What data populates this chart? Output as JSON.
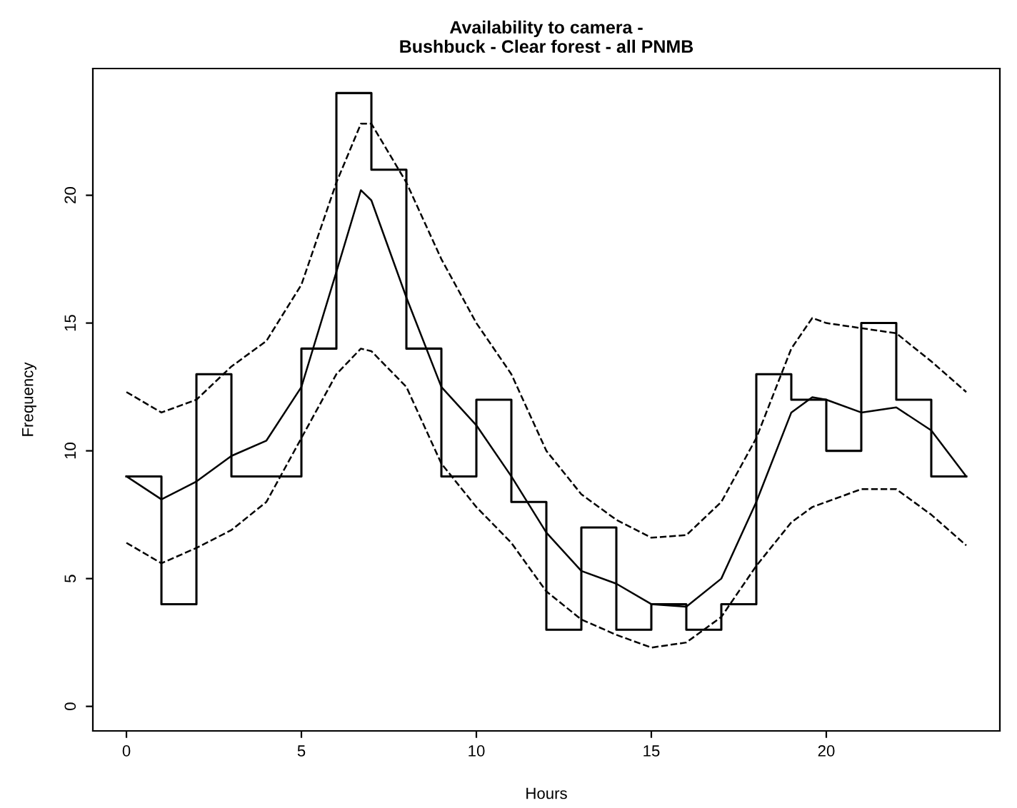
{
  "chart_data": {
    "type": "line",
    "title": "Availability to camera -\nBushbuck - Clear forest - all PNMB",
    "xlabel": "Hours",
    "ylabel": "Frequency",
    "series": [
      {
        "type": "step",
        "color": "#000000",
        "line_style": "solid",
        "x": [
          0,
          1,
          2,
          3,
          4,
          5,
          6,
          7,
          8,
          9,
          10,
          11,
          12,
          13,
          14,
          15,
          16,
          17,
          18,
          19,
          20,
          21,
          22,
          23,
          24
        ],
        "values": [
          9,
          4,
          13,
          9,
          9,
          14,
          24,
          21,
          14,
          9,
          12,
          8,
          3,
          7,
          3,
          4,
          3,
          4,
          13,
          12,
          10,
          15,
          12,
          9,
          9
        ]
      },
      {
        "color": "#000000",
        "line_style": "solid",
        "x": [
          0,
          1,
          2,
          3,
          4,
          5,
          6,
          6.7,
          7,
          8,
          9,
          10,
          11,
          12,
          13,
          14,
          15,
          16,
          17,
          18,
          19,
          19.6,
          20,
          21,
          22,
          23,
          24
        ],
        "values": [
          9.0,
          8.1,
          8.8,
          9.8,
          10.4,
          12.5,
          17,
          20.2,
          19.8,
          16,
          12.5,
          11,
          9,
          6.8,
          5.3,
          4.8,
          4.0,
          3.9,
          5.0,
          8.0,
          11.5,
          12.1,
          12,
          11.5,
          11.7,
          10.8,
          9.0
        ]
      },
      {
        "color": "#000000",
        "line_style": "dashed",
        "x": [
          0,
          1,
          2,
          3,
          4,
          5,
          6,
          6.7,
          7,
          8,
          9,
          10,
          11,
          12,
          13,
          14,
          15,
          16,
          17,
          18,
          19,
          19.6,
          20,
          21,
          22,
          23,
          24
        ],
        "values": [
          12.3,
          11.5,
          12,
          13.3,
          14.3,
          16.5,
          20.5,
          22.8,
          22.8,
          20.5,
          17.5,
          15,
          13,
          10,
          8.3,
          7.3,
          6.6,
          6.7,
          8,
          10.5,
          14,
          15.2,
          15,
          14.8,
          14.6,
          13.5,
          12.3
        ]
      },
      {
        "color": "#000000",
        "line_style": "dashed",
        "x": [
          0,
          1,
          2,
          3,
          4,
          5,
          6,
          6.7,
          7,
          8,
          9,
          10,
          11,
          12,
          13,
          14,
          15,
          16,
          17,
          18,
          19,
          19.6,
          20,
          21,
          22,
          23,
          24
        ],
        "values": [
          6.4,
          5.6,
          6.2,
          6.9,
          8,
          10.5,
          13,
          14.0,
          13.9,
          12.5,
          9.5,
          7.8,
          6.4,
          4.5,
          3.4,
          2.8,
          2.3,
          2.5,
          3.5,
          5.5,
          7.2,
          7.8,
          8.0,
          8.5,
          8.5,
          7.5,
          6.3
        ]
      }
    ],
    "xlim": [
      -0.96,
      24.96
    ],
    "ylim": [
      -0.96,
      24.96
    ],
    "xticks": [
      0,
      5,
      10,
      15,
      20
    ],
    "yticks": [
      0,
      5,
      10,
      15,
      20
    ],
    "grid": false,
    "legend": false
  }
}
